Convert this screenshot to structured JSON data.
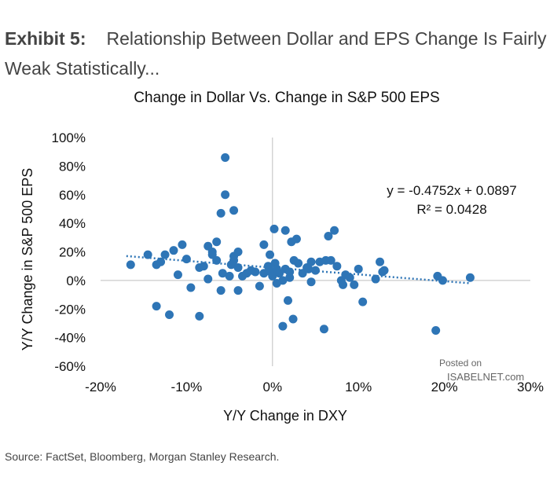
{
  "header": {
    "exhibit_label": "Exhibit 5:",
    "exhibit_title": "Relationship Between Dollar and EPS Change Is Fairly Weak Statistically..."
  },
  "source": "Source: FactSet, Bloomberg, Morgan Stanley Research.",
  "watermark": {
    "line1": "Posted on",
    "line2": "ISABELNET.com"
  },
  "colors": {
    "points": "#2e75b6",
    "trendline": "#2e75b6",
    "axes": "#bfbfbf"
  },
  "chart_data": {
    "type": "scatter",
    "title": "Change in Dollar Vs. Change in S&P 500 EPS",
    "xlabel": "Y/Y Change in DXY",
    "ylabel": "Y/Y Change in S&P 500 EPS",
    "xlim": [
      -20,
      30
    ],
    "ylim": [
      -60,
      100
    ],
    "x_ticks": [
      -20,
      -10,
      0,
      10,
      20,
      30
    ],
    "x_tick_labels": [
      "-20%",
      "-10%",
      "0%",
      "10%",
      "20%",
      "30%"
    ],
    "y_ticks": [
      100,
      80,
      60,
      40,
      20,
      0,
      -20,
      -40,
      -60
    ],
    "y_tick_labels": [
      "100%",
      "80%",
      "60%",
      "40%",
      "20%",
      "0%",
      "-20%",
      "-40%",
      "-60%"
    ],
    "grid": false,
    "trendline": {
      "slope": -0.4752,
      "intercept": 8.97,
      "x_range": [
        -17,
        23
      ]
    },
    "annotations": {
      "equation": "y = -0.4752x + 0.0897",
      "r_squared": "R² = 0.0428"
    },
    "points": [
      [
        -16.5,
        11
      ],
      [
        -14.5,
        18
      ],
      [
        -13.5,
        11
      ],
      [
        -13.5,
        -18
      ],
      [
        -13,
        13
      ],
      [
        -12.5,
        18
      ],
      [
        -12,
        -24
      ],
      [
        -11.5,
        21
      ],
      [
        -11,
        4
      ],
      [
        -10.5,
        25
      ],
      [
        -10,
        15
      ],
      [
        -9.5,
        -5
      ],
      [
        -8.5,
        -25
      ],
      [
        -8.5,
        9
      ],
      [
        -8,
        10
      ],
      [
        -7.5,
        24
      ],
      [
        -7.5,
        1
      ],
      [
        -7,
        20
      ],
      [
        -7,
        18
      ],
      [
        -6.5,
        14
      ],
      [
        -6.5,
        27
      ],
      [
        -6,
        -7
      ],
      [
        -6,
        47
      ],
      [
        -5.8,
        5
      ],
      [
        -5.5,
        86
      ],
      [
        -5.5,
        60
      ],
      [
        -5,
        3
      ],
      [
        -4.8,
        11
      ],
      [
        -4.5,
        49
      ],
      [
        -4.5,
        17
      ],
      [
        -4.5,
        14
      ],
      [
        -4,
        20
      ],
      [
        -4,
        9
      ],
      [
        -4,
        -7
      ],
      [
        -3.5,
        3
      ],
      [
        -3,
        5
      ],
      [
        -2.5,
        7
      ],
      [
        -2,
        6
      ],
      [
        -1.5,
        -4
      ],
      [
        -1,
        25
      ],
      [
        -1,
        5
      ],
      [
        -0.5,
        10
      ],
      [
        -0.3,
        18
      ],
      [
        -0.2,
        6
      ],
      [
        0,
        3
      ],
      [
        0.2,
        36
      ],
      [
        0.3,
        12
      ],
      [
        0.5,
        8
      ],
      [
        0.5,
        -2
      ],
      [
        0.8,
        5
      ],
      [
        1.2,
        0
      ],
      [
        1.2,
        -32
      ],
      [
        1.5,
        35
      ],
      [
        1.5,
        8
      ],
      [
        1.8,
        -14
      ],
      [
        2,
        2
      ],
      [
        2,
        6
      ],
      [
        2.2,
        27
      ],
      [
        2.4,
        -27
      ],
      [
        2.5,
        14
      ],
      [
        2.8,
        29
      ],
      [
        3,
        12
      ],
      [
        3.5,
        5
      ],
      [
        4,
        9
      ],
      [
        4.2,
        8
      ],
      [
        4.5,
        13
      ],
      [
        4.5,
        -1
      ],
      [
        5,
        7
      ],
      [
        5.5,
        13
      ],
      [
        6,
        -34
      ],
      [
        6.2,
        14
      ],
      [
        6.5,
        31
      ],
      [
        6.8,
        14
      ],
      [
        7.2,
        35
      ],
      [
        7.5,
        10
      ],
      [
        8,
        0
      ],
      [
        8.2,
        -3
      ],
      [
        8.5,
        4
      ],
      [
        9,
        2
      ],
      [
        9.5,
        -3
      ],
      [
        10,
        8
      ],
      [
        10.5,
        -15
      ],
      [
        12,
        1
      ],
      [
        12.5,
        13
      ],
      [
        12.8,
        6
      ],
      [
        13,
        7
      ],
      [
        19,
        -35
      ],
      [
        19.2,
        3
      ],
      [
        19.8,
        0
      ],
      [
        23,
        2
      ]
    ]
  }
}
